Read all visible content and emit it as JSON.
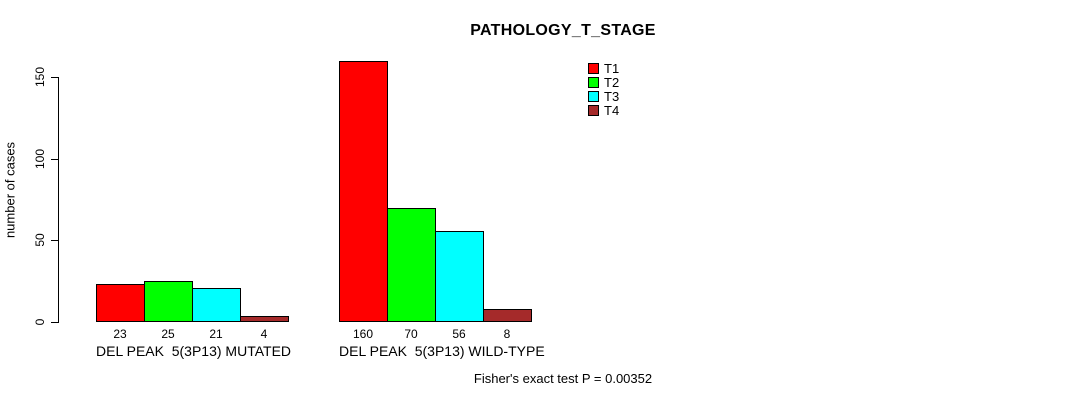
{
  "title": "PATHOLOGY_T_STAGE",
  "y_axis": {
    "label": "number of cases",
    "ticks": [
      "0",
      "50",
      "100",
      "150"
    ]
  },
  "footer": {
    "stat_text": "Fisher's exact test P = 0.00352"
  },
  "chart_data": {
    "type": "bar",
    "title": "PATHOLOGY_T_STAGE",
    "xlabel": "",
    "ylabel": "number of cases",
    "ylim": [
      0,
      160
    ],
    "yticks": [
      0,
      50,
      100,
      150
    ],
    "grid": false,
    "legend_position": "top-right-inside",
    "groups": [
      "DEL PEAK  5(3P13) MUTATED",
      "DEL PEAK  5(3P13) WILD-TYPE"
    ],
    "series": [
      {
        "name": "T1",
        "color": "#FF0000",
        "values": [
          23,
          160
        ]
      },
      {
        "name": "T2",
        "color": "#00FF00",
        "values": [
          25,
          70
        ]
      },
      {
        "name": "T3",
        "color": "#00FFFF",
        "values": [
          21,
          56
        ]
      },
      {
        "name": "T4",
        "color": "#A52A2A",
        "values": [
          4,
          8
        ]
      }
    ],
    "bar_value_labels": [
      [
        23,
        25,
        21,
        4
      ],
      [
        160,
        70,
        56,
        8
      ]
    ],
    "annotation": "Fisher's exact test P = 0.00352"
  }
}
